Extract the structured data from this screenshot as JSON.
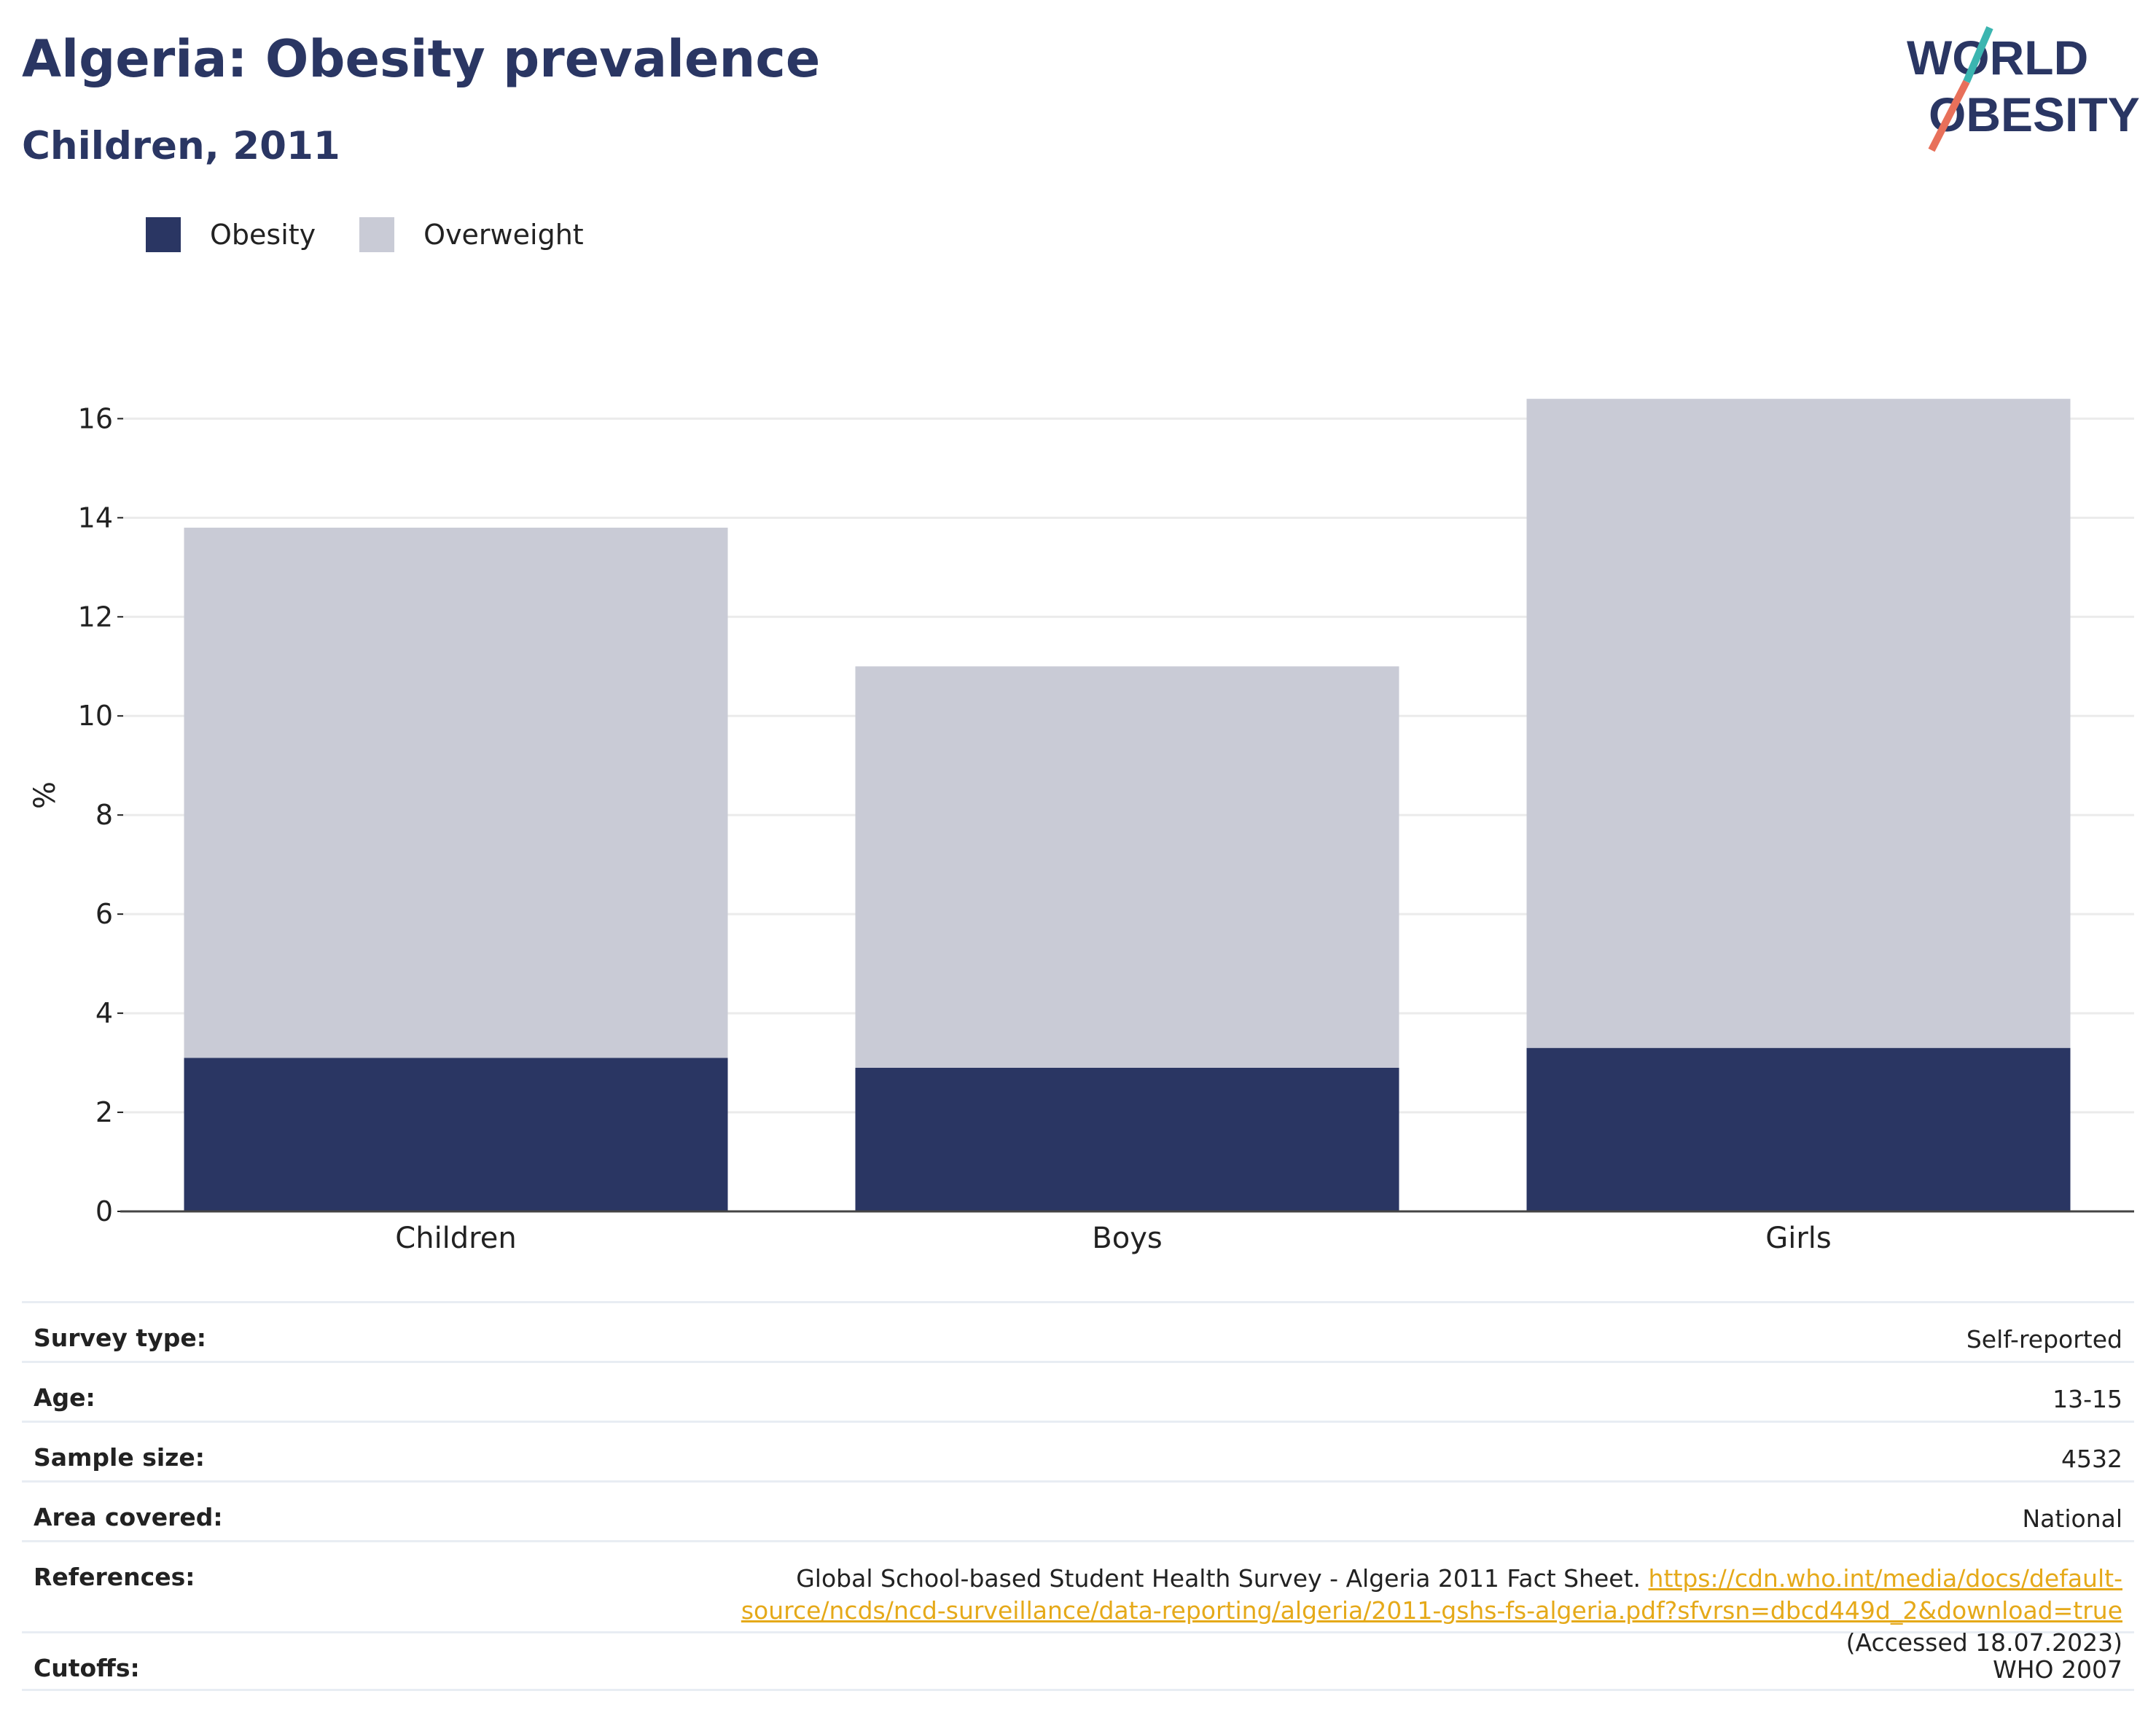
{
  "header": {
    "title": "Algeria: Obesity prevalence",
    "subtitle": "Children, 2011"
  },
  "logo": {
    "line1": "WORLD",
    "line2": "OBESITY",
    "accent_teal": "#3bb5b0",
    "accent_coral": "#e8705a",
    "text_color": "#2a3663"
  },
  "colors": {
    "obesity": "#2a3663",
    "overweight": "#c9cbd6"
  },
  "chart_data": {
    "type": "bar",
    "stacked": true,
    "categories": [
      "Children",
      "Boys",
      "Girls"
    ],
    "series": [
      {
        "name": "Obesity",
        "values": [
          3.1,
          2.9,
          3.3
        ]
      },
      {
        "name": "Overweight",
        "values": [
          10.7,
          8.1,
          13.1
        ]
      }
    ],
    "ylabel": "%",
    "ylim": [
      0,
      16.8
    ],
    "yticks": [
      0,
      2,
      4,
      6,
      8,
      10,
      12,
      14,
      16
    ],
    "grid": true,
    "legend_position": "top-left"
  },
  "meta": {
    "survey_type": {
      "label": "Survey type:",
      "value": "Self-reported"
    },
    "age": {
      "label": "Age:",
      "value": "13-15"
    },
    "sample_size": {
      "label": "Sample size:",
      "value": "4532"
    },
    "area": {
      "label": "Area covered:",
      "value": "National"
    },
    "references": {
      "label": "References:",
      "text": "Global School-based Student Health Survey - Algeria 2011 Fact Sheet.",
      "link": "https://cdn.who.int/media/docs/default-source/ncds/ncd-surveillance/data-reporting/algeria/2011-gshs-fs-algeria.pdf?sfvrsn=dbcd449d_2&download=true",
      "accessed": "(Accessed 18.07.2023)"
    },
    "cutoffs": {
      "label": "Cutoffs:",
      "value": "WHO 2007"
    }
  }
}
